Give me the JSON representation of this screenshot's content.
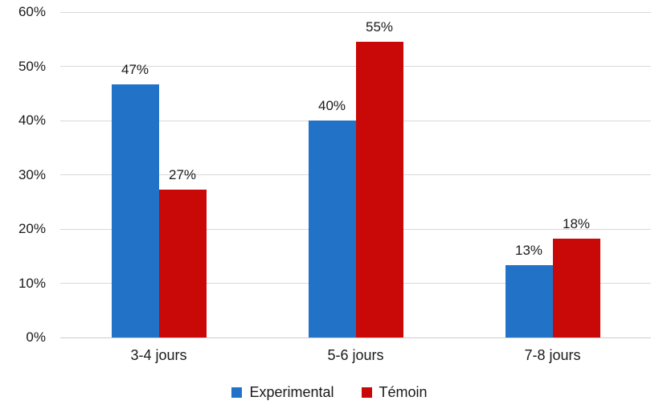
{
  "chart_data": {
    "type": "bar",
    "title": "",
    "xlabel": "",
    "ylabel": "",
    "categories": [
      "3-4 jours",
      "5-6 jours",
      "7-8 jours"
    ],
    "series": [
      {
        "name": "Experimental",
        "color": "#2272C8",
        "values": [
          47,
          40,
          13
        ],
        "labels": [
          "47%",
          "40%",
          "13%"
        ],
        "plot_values": [
          46.7,
          40.0,
          13.3
        ]
      },
      {
        "name": "Témoin",
        "color": "#C90808",
        "values": [
          27,
          55,
          18
        ],
        "labels": [
          "27%",
          "55%",
          "18%"
        ],
        "plot_values": [
          27.3,
          54.5,
          18.2
        ]
      }
    ],
    "ylim": [
      0,
      60
    ],
    "ytick_values": [
      0,
      10,
      20,
      30,
      40,
      50,
      60
    ],
    "ytick_labels": [
      "0%",
      "10%",
      "20%",
      "30%",
      "40%",
      "50%",
      "60%"
    ],
    "grid": true,
    "legend_position": "bottom"
  },
  "colors": {
    "background": "#ffffff",
    "gridline": "#d9d9d9",
    "axis_line": "#cccccc",
    "text": "#1a1a1a"
  }
}
